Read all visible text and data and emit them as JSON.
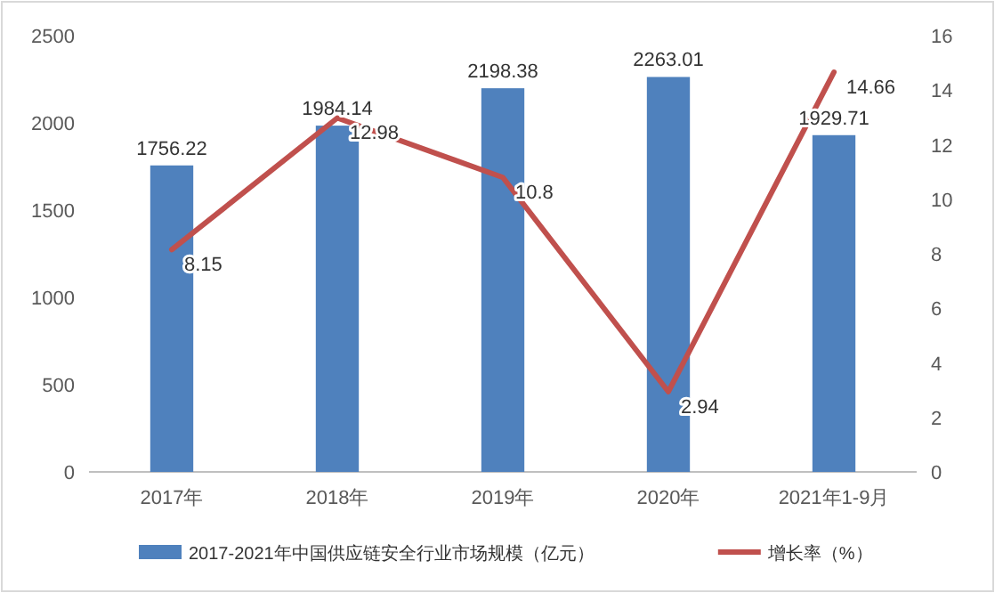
{
  "chart_data": {
    "type": "bar",
    "categories": [
      "2017年",
      "2018年",
      "2019年",
      "2020年",
      "2021年1-9月"
    ],
    "series": [
      {
        "name": "2017-2021年中国供应链安全行业市场规模（亿元）",
        "color": "#4f81bd",
        "values": [
          1756.22,
          1984.14,
          2198.38,
          2263.01,
          1929.71
        ]
      },
      {
        "name": "增长率（%）",
        "type": "line",
        "axis": "y2",
        "color": "#c0504d",
        "values": [
          8.15,
          12.98,
          10.8,
          2.94,
          14.66
        ]
      }
    ],
    "ylim": [
      0,
      2500
    ],
    "yticks": [
      0,
      500,
      1000,
      1500,
      2000,
      2500
    ],
    "y2lim": [
      0,
      16
    ],
    "y2ticks": [
      0,
      2,
      4,
      6,
      8,
      10,
      12,
      14,
      16
    ],
    "data_labels": true,
    "legend": "bottom",
    "grid": false,
    "marker": "none",
    "line_style": "solid"
  }
}
